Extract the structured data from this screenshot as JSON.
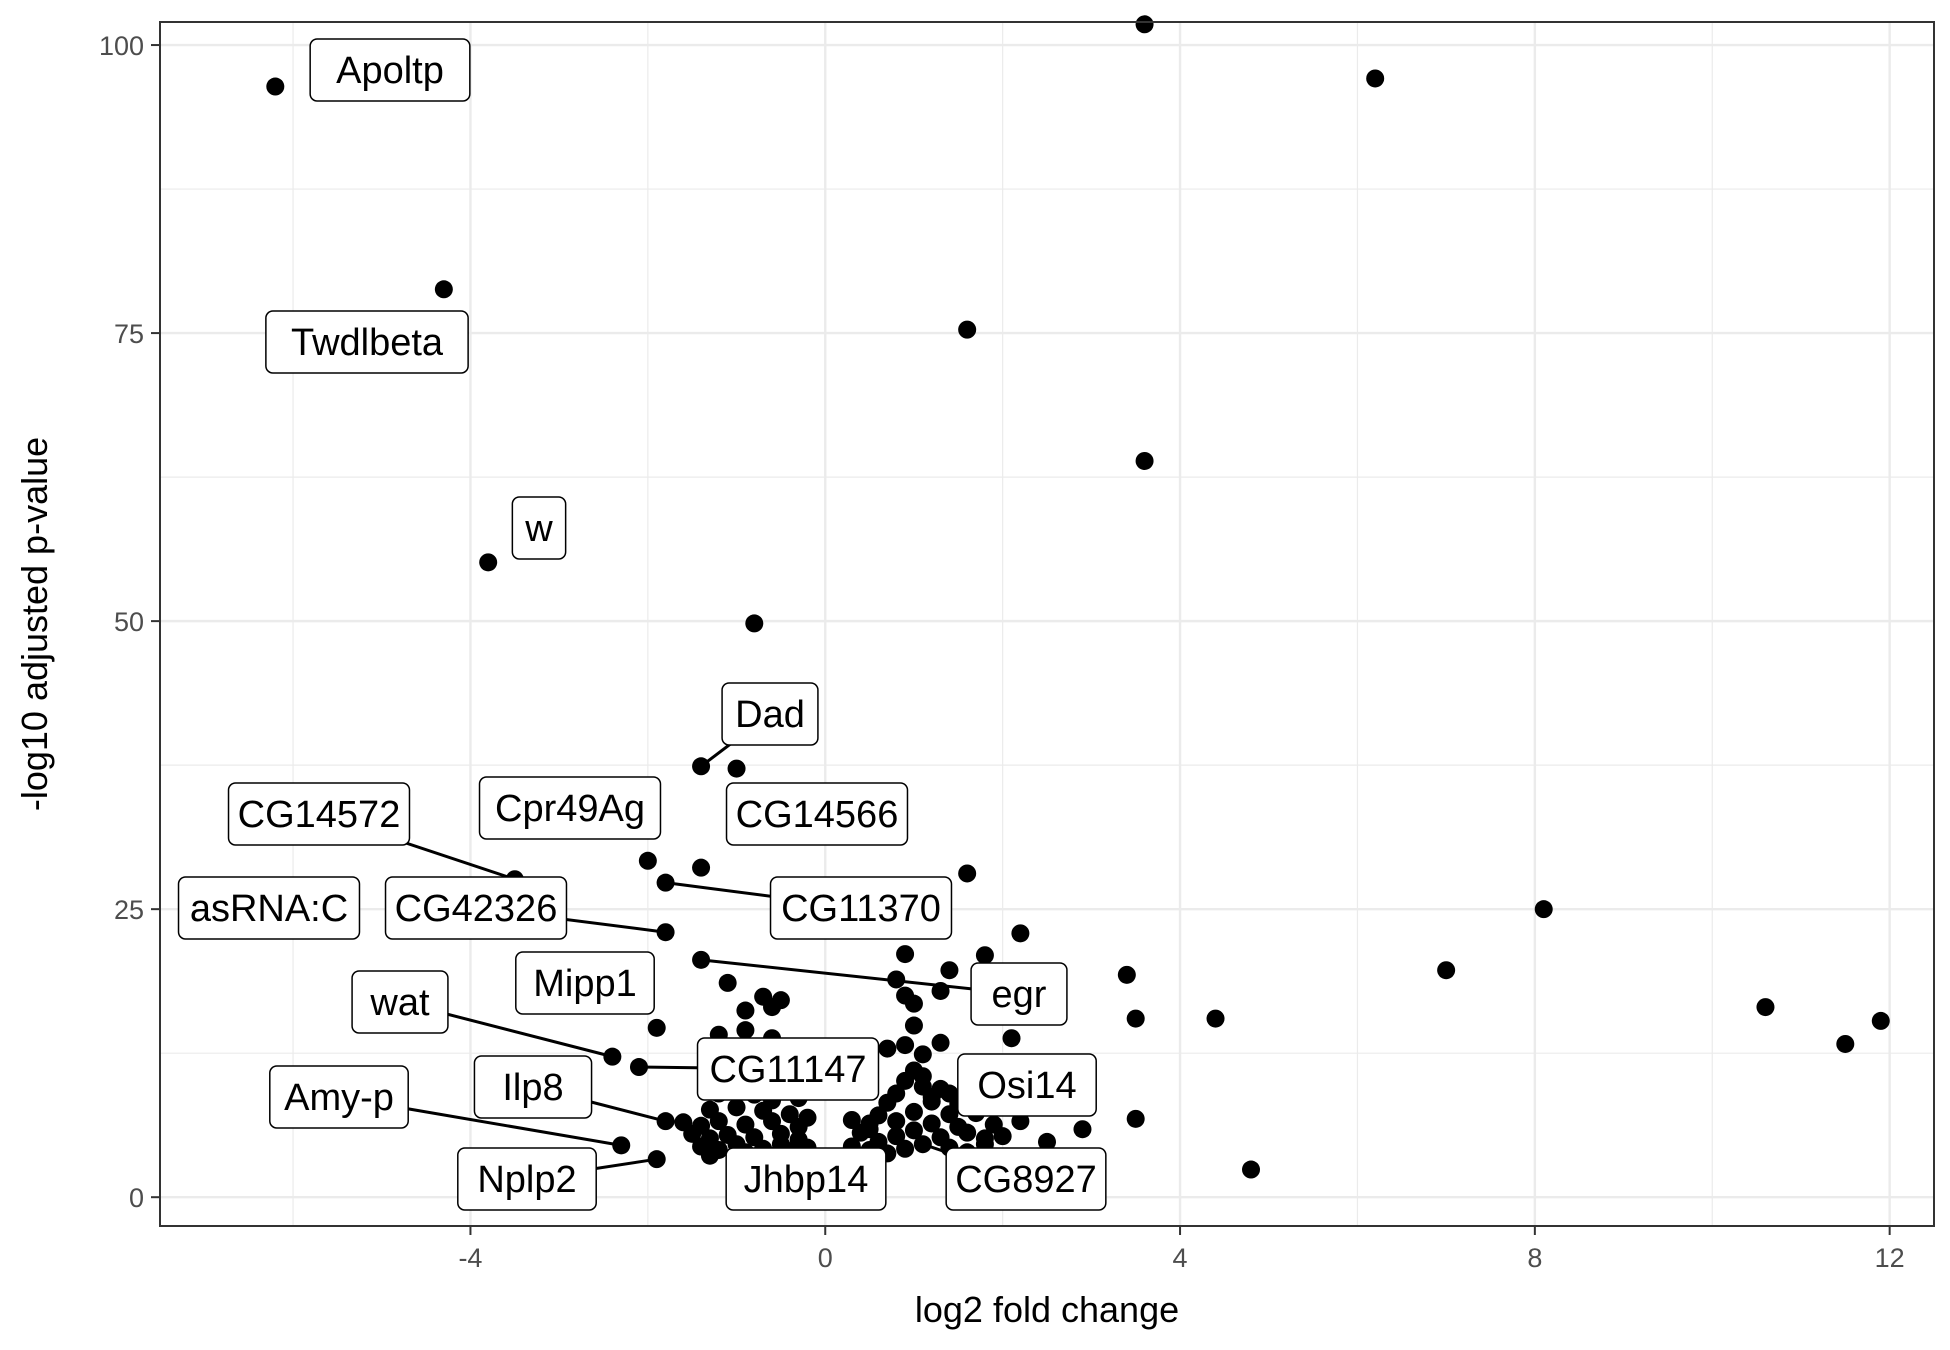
{
  "chart_data": {
    "type": "scatter",
    "title": "",
    "xlabel": "log2 fold change",
    "ylabel": "-log10 adjusted p-value",
    "xlim": [
      -7.5,
      12.5
    ],
    "ylim": [
      -2.5,
      102
    ],
    "x_ticks": [
      -4,
      0,
      4,
      8,
      12
    ],
    "x_tick_labels": [
      "-4",
      "0",
      "4",
      "8",
      "12"
    ],
    "y_ticks": [
      0,
      25,
      50,
      75,
      100
    ],
    "y_tick_labels": [
      "0",
      "25",
      "50",
      "75",
      "100"
    ],
    "grid": true,
    "legend": "none",
    "point_color": "#000000",
    "points": [
      [
        -6.2,
        96.4
      ],
      [
        3.6,
        101.8
      ],
      [
        6.2,
        97.1
      ],
      [
        -4.3,
        78.8
      ],
      [
        1.6,
        75.3
      ],
      [
        3.6,
        63.9
      ],
      [
        -3.8,
        55.1
      ],
      [
        -0.8,
        49.8
      ],
      [
        -1.4,
        37.4
      ],
      [
        -1.0,
        37.2
      ],
      [
        -3.5,
        27.6
      ],
      [
        -2.0,
        29.2
      ],
      [
        -1.8,
        27.3
      ],
      [
        -1.4,
        28.6
      ],
      [
        1.6,
        28.1
      ],
      [
        -1.8,
        23.0
      ],
      [
        -1.4,
        20.6
      ],
      [
        2.2,
        22.9
      ],
      [
        1.8,
        21.0
      ],
      [
        0.9,
        21.1
      ],
      [
        1.4,
        19.7
      ],
      [
        2.1,
        18.3
      ],
      [
        1.3,
        17.9
      ],
      [
        0.8,
        18.9
      ],
      [
        0.9,
        17.5
      ],
      [
        1.0,
        16.8
      ],
      [
        1.0,
        14.9
      ],
      [
        2.1,
        13.8
      ],
      [
        3.4,
        19.3
      ],
      [
        3.5,
        15.5
      ],
      [
        4.4,
        15.5
      ],
      [
        8.1,
        25.0
      ],
      [
        7.0,
        19.7
      ],
      [
        10.6,
        16.5
      ],
      [
        11.5,
        13.3
      ],
      [
        11.9,
        15.3
      ],
      [
        -2.4,
        12.2
      ],
      [
        -2.1,
        11.3
      ],
      [
        -1.9,
        14.7
      ],
      [
        -1.1,
        18.6
      ],
      [
        -0.7,
        17.4
      ],
      [
        -0.5,
        17.1
      ],
      [
        -0.9,
        16.2
      ],
      [
        -0.6,
        16.5
      ],
      [
        -1.2,
        14.1
      ],
      [
        -0.9,
        14.5
      ],
      [
        -0.6,
        13.8
      ],
      [
        -0.5,
        12.1
      ],
      [
        -1.3,
        11.6
      ],
      [
        -1.1,
        10.5
      ],
      [
        -0.7,
        10.6
      ],
      [
        -0.4,
        9.8
      ],
      [
        -1.2,
        9.0
      ],
      [
        -0.8,
        8.9
      ],
      [
        -0.6,
        8.4
      ],
      [
        -0.3,
        8.6
      ],
      [
        -1.3,
        7.6
      ],
      [
        -1.0,
        7.8
      ],
      [
        -0.7,
        7.5
      ],
      [
        -0.4,
        7.2
      ],
      [
        -1.8,
        6.6
      ],
      [
        -1.6,
        6.5
      ],
      [
        -1.4,
        6.2
      ],
      [
        -1.2,
        6.6
      ],
      [
        -0.9,
        6.3
      ],
      [
        -0.6,
        6.6
      ],
      [
        -0.3,
        6.1
      ],
      [
        -1.5,
        5.5
      ],
      [
        -1.3,
        5.1
      ],
      [
        -1.1,
        5.4
      ],
      [
        -0.8,
        5.2
      ],
      [
        -0.5,
        5.5
      ],
      [
        -0.3,
        5.0
      ],
      [
        -1.4,
        4.4
      ],
      [
        -1.2,
        4.1
      ],
      [
        -1.0,
        4.6
      ],
      [
        -0.7,
        4.2
      ],
      [
        -0.5,
        4.6
      ],
      [
        -0.2,
        4.3
      ],
      [
        -1.3,
        3.6
      ],
      [
        -0.9,
        3.9
      ],
      [
        -0.6,
        3.6
      ],
      [
        -0.4,
        4.0
      ],
      [
        -2.3,
        4.5
      ],
      [
        -1.9,
        3.3
      ],
      [
        0.3,
        4.4
      ],
      [
        0.4,
        5.6
      ],
      [
        0.5,
        6.4
      ],
      [
        0.6,
        7.1
      ],
      [
        0.7,
        8.2
      ],
      [
        0.8,
        9.0
      ],
      [
        0.9,
        10.1
      ],
      [
        1.0,
        11.0
      ],
      [
        1.1,
        9.6
      ],
      [
        1.2,
        8.7
      ],
      [
        0.6,
        4.8
      ],
      [
        0.8,
        5.3
      ],
      [
        1.0,
        5.8
      ],
      [
        1.2,
        6.4
      ],
      [
        1.4,
        7.2
      ],
      [
        1.5,
        6.1
      ],
      [
        1.3,
        5.2
      ],
      [
        1.1,
        4.6
      ],
      [
        0.9,
        4.2
      ],
      [
        0.7,
        3.8
      ],
      [
        0.5,
        4.1
      ],
      [
        0.8,
        6.6
      ],
      [
        1.0,
        7.4
      ],
      [
        1.2,
        8.3
      ],
      [
        1.4,
        9.0
      ],
      [
        1.1,
        10.5
      ],
      [
        1.6,
        5.6
      ],
      [
        1.8,
        5.1
      ],
      [
        1.9,
        6.3
      ],
      [
        1.7,
        7.3
      ],
      [
        1.5,
        8.1
      ],
      [
        1.3,
        9.4
      ],
      [
        0.4,
        3.6
      ],
      [
        0.6,
        3.5
      ],
      [
        1.4,
        4.3
      ],
      [
        1.6,
        3.9
      ],
      [
        1.8,
        4.6
      ],
      [
        2.0,
        5.3
      ],
      [
        2.2,
        6.6
      ],
      [
        2.5,
        4.8
      ],
      [
        2.9,
        5.9
      ],
      [
        3.5,
        6.8
      ],
      [
        4.8,
        2.4
      ],
      [
        1.1,
        12.4
      ],
      [
        1.3,
        13.4
      ],
      [
        0.7,
        12.9
      ],
      [
        0.9,
        13.2
      ],
      [
        0.5,
        5.9
      ],
      [
        0.3,
        6.7
      ],
      [
        -0.2,
        6.9
      ]
    ],
    "annotations": [
      {
        "label": "Apoltp"
      },
      {
        "label": "Twdlbeta"
      },
      {
        "label": "w"
      },
      {
        "label": "Dad"
      },
      {
        "label": "CG14572"
      },
      {
        "label": "Cpr49Ag"
      },
      {
        "label": "CG14566"
      },
      {
        "label": "asRNA:C"
      },
      {
        "label": "CG42326"
      },
      {
        "label": "CG11370"
      },
      {
        "label": "Mipp1"
      },
      {
        "label": "egr"
      },
      {
        "label": "wat"
      },
      {
        "label": "CG11147"
      },
      {
        "label": "Osi14"
      },
      {
        "label": "Amy-p"
      },
      {
        "label": "Ilp8"
      },
      {
        "label": "Nplp2"
      },
      {
        "label": "Jhbp14"
      },
      {
        "label": "CG8927"
      }
    ]
  }
}
